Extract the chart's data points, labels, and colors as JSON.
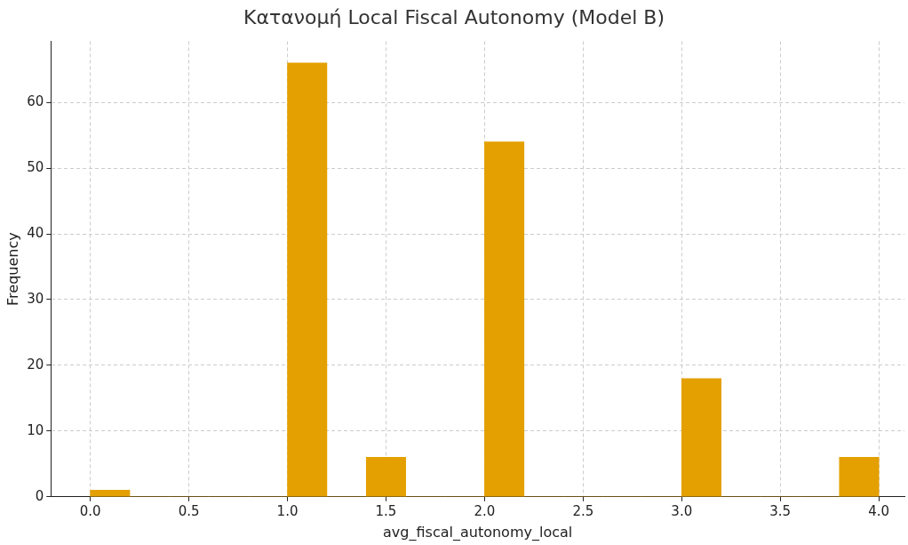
{
  "chart_data": {
    "type": "histogram",
    "title": "Κατανομή Local Fiscal Autonomy (Model B)",
    "xlabel": "avg_fiscal_autonomy_local",
    "ylabel": "Frequency",
    "bins": [
      0,
      0.2,
      0.4,
      0.6,
      0.8,
      1.0,
      1.2,
      1.4,
      1.6,
      1.8,
      2.0,
      2.2,
      2.4,
      2.6,
      2.8,
      3.0,
      3.2,
      3.4,
      3.6,
      3.8,
      4.0
    ],
    "values": [
      1,
      0,
      0,
      0,
      0,
      66,
      0,
      6,
      0,
      0,
      54,
      0,
      0,
      0,
      0,
      18,
      0,
      0,
      0,
      6
    ],
    "color": "#e3a000",
    "xlim": [
      -0.2,
      4.13
    ],
    "xticks": [
      {
        "value": 0,
        "label": "0.0"
      },
      {
        "value": 0.5,
        "label": "0.5"
      },
      {
        "value": 1,
        "label": "1.0"
      },
      {
        "value": 1.5,
        "label": "1.5"
      },
      {
        "value": 2,
        "label": "2.0"
      },
      {
        "value": 2.5,
        "label": "2.5"
      },
      {
        "value": 3,
        "label": "3.0"
      },
      {
        "value": 3.5,
        "label": "3.5"
      },
      {
        "value": 4,
        "label": "4.0"
      }
    ],
    "ylim": [
      0,
      69.3
    ],
    "yticks": [
      0,
      10,
      20,
      30,
      40,
      50,
      60
    ],
    "grid": true
  }
}
